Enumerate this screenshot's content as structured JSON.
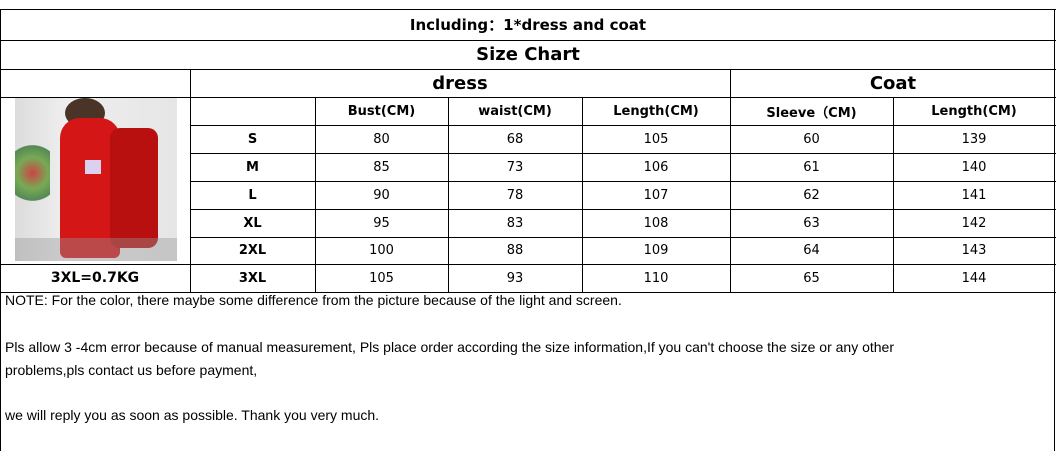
{
  "including": "Including：1*dress and coat",
  "title": "Size Chart",
  "groups": {
    "dress": "dress",
    "coat": "Coat"
  },
  "headers": [
    "Bust(CM)",
    "waist(CM)",
    "Length(CM)",
    "Sleeve（CM)",
    "Length(CM)"
  ],
  "rows": [
    {
      "size": "S",
      "values": [
        "80",
        "68",
        "105",
        "60",
        "139"
      ]
    },
    {
      "size": "M",
      "values": [
        "85",
        "73",
        "106",
        "61",
        "140"
      ]
    },
    {
      "size": "L",
      "values": [
        "90",
        "78",
        "107",
        "62",
        "141"
      ]
    },
    {
      "size": "XL",
      "values": [
        "95",
        "83",
        "108",
        "63",
        "142"
      ]
    },
    {
      "size": "2XL",
      "values": [
        "100",
        "88",
        "109",
        "64",
        "143"
      ]
    },
    {
      "size": "3XL",
      "values": [
        "105",
        "93",
        "110",
        "65",
        "144"
      ]
    }
  ],
  "weight": "3XL=0.7KG",
  "notes": [
    "NOTE:  For the color, there maybe some difference from the picture because of the light and screen.",
    "Pls allow 3 -4cm error because of manual measurement, Pls place order according the size information,If you can't choose the size or any other",
    "problems,pls contact us before payment,",
    "we will reply you as soon as possible. Thank you very much."
  ]
}
